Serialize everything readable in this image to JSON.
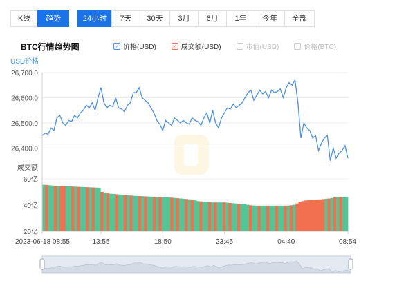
{
  "range_tabs": {
    "mode": [
      {
        "label": "K线",
        "active": false
      },
      {
        "label": "趋势",
        "active": true
      }
    ],
    "periods": [
      {
        "label": "24小时",
        "active": true
      },
      {
        "label": "7天",
        "active": false
      },
      {
        "label": "30天",
        "active": false
      },
      {
        "label": "3月",
        "active": false
      },
      {
        "label": "6月",
        "active": false
      },
      {
        "label": "1年",
        "active": false
      },
      {
        "label": "今年",
        "active": false
      },
      {
        "label": "全部",
        "active": false
      }
    ]
  },
  "chart_title": "BTC行情趋势图",
  "legend": [
    {
      "label": "价格(USD)",
      "checked": true,
      "color": "#4a90e2"
    },
    {
      "label": "成交额(USD)",
      "checked": true,
      "color": "#f07050"
    },
    {
      "label": "市值(USD)",
      "checked": false,
      "color": "#cccccc"
    },
    {
      "label": "价格(BTC)",
      "checked": false,
      "color": "#cccccc"
    }
  ],
  "colors": {
    "price_line": "#4a90e2",
    "vol_up": "#56c596",
    "vol_down": "#f07050",
    "axis_text": "#4a90e2"
  },
  "chart_data": {
    "type": "line",
    "price": {
      "ylabel": "USD价格",
      "ylim": [
        26330,
        26700
      ],
      "yticks": [
        "26,700.0",
        "26,600.0",
        "26,500.0",
        "26,400.0"
      ],
      "ytick_values": [
        26700,
        26600,
        26500,
        26400
      ],
      "values": [
        26450,
        26460,
        26455,
        26480,
        26470,
        26520,
        26530,
        26500,
        26490,
        26510,
        26505,
        26530,
        26520,
        26540,
        26550,
        26570,
        26560,
        26580,
        26550,
        26600,
        26640,
        26580,
        26560,
        26570,
        26565,
        26600,
        26560,
        26555,
        26545,
        26570,
        26580,
        26620,
        26620,
        26640,
        26600,
        26590,
        26580,
        26560,
        26540,
        26510,
        26495,
        26470,
        26510,
        26500,
        26490,
        26520,
        26510,
        26500,
        26510,
        26500,
        26495,
        26520,
        26510,
        26505,
        26490,
        26520,
        26540,
        26500,
        26550,
        26500,
        26480,
        26520,
        26540,
        26560,
        26555,
        26575,
        26560,
        26570,
        26580,
        26600,
        26620,
        26630,
        26590,
        26610,
        26630,
        26615,
        26625,
        26600,
        26630,
        26620,
        26625,
        26635,
        26600,
        26640,
        26660,
        26650,
        26670,
        26580,
        26440,
        26500,
        26480,
        26470,
        26440,
        26450,
        26390,
        26420,
        26440,
        26450,
        26350,
        26400,
        26360,
        26380,
        26390,
        26410,
        26360
      ]
    },
    "volume": {
      "ylabel": "成交额",
      "ylim": [
        20,
        60
      ],
      "yticks": [
        "60亿",
        "40亿",
        "20亿"
      ],
      "ytick_values": [
        60,
        40,
        20
      ],
      "values": [
        55.5,
        55.3,
        55.1,
        54.9,
        54.7,
        54.6,
        54.5,
        54.4,
        54.3,
        54.2,
        54.1,
        54.0,
        53.9,
        53.8,
        53.7,
        53.6,
        53.5,
        53.4,
        53.3,
        53.2,
        50,
        49.3,
        48.9,
        48.6,
        48.4,
        48.2,
        48.0,
        47.8,
        47.6,
        47.4,
        47.2,
        47.0,
        46.9,
        46.8,
        46.7,
        46.6,
        46.5,
        46.4,
        46.3,
        46.2,
        46.1,
        46.0,
        45.9,
        45.8,
        45.6,
        45.4,
        45.2,
        45.0,
        44.8,
        44.6,
        44.4,
        44.2,
        43.6,
        43.0,
        42.8,
        42.6,
        42.4,
        42.2,
        42.0,
        42.0,
        42.0,
        42.0,
        42.0,
        41.8,
        41.6,
        41.4,
        41.2,
        41.0,
        40.8,
        40.6,
        40.2,
        39.8,
        39.6,
        39.5,
        39.5,
        39.5,
        39.5,
        39.5,
        39.5,
        39.5,
        39.5,
        39.5,
        39.5,
        39.5,
        39.6,
        39.8,
        40.2,
        41.2,
        42.4,
        43.0,
        43.5,
        43.8,
        44.0,
        44.1,
        44.2,
        44.3,
        44.5,
        44.8,
        45.0,
        45.4,
        45.8,
        46.1,
        46.3,
        46.3,
        46.2
      ],
      "up": [
        1,
        0,
        1,
        1,
        0,
        1,
        0,
        0,
        1,
        1,
        0,
        1,
        0,
        1,
        1,
        0,
        1,
        0,
        1,
        1,
        0,
        1,
        0,
        1,
        1,
        0,
        1,
        1,
        0,
        1,
        0,
        1,
        1,
        0,
        1,
        0,
        1,
        1,
        0,
        1,
        0,
        1,
        1,
        1,
        0,
        1,
        0,
        1,
        1,
        0,
        1,
        0,
        1,
        1,
        0,
        1,
        1,
        0,
        1,
        0,
        1,
        1,
        0,
        1,
        0,
        1,
        1,
        0,
        1,
        1,
        1,
        0,
        1,
        1,
        0,
        1,
        1,
        0,
        1,
        1,
        0,
        1,
        1,
        0,
        1,
        0,
        1,
        0,
        0,
        0,
        0,
        0,
        0,
        0,
        0,
        0,
        0,
        1,
        0,
        1,
        0,
        1,
        0,
        1,
        1
      ]
    },
    "x_ticks": [
      "2023-06-18 08:55",
      "13:55",
      "18:50",
      "23:45",
      "04:40",
      "08:54"
    ],
    "x_tick_positions": [
      0,
      20,
      41,
      62,
      83,
      104
    ]
  }
}
